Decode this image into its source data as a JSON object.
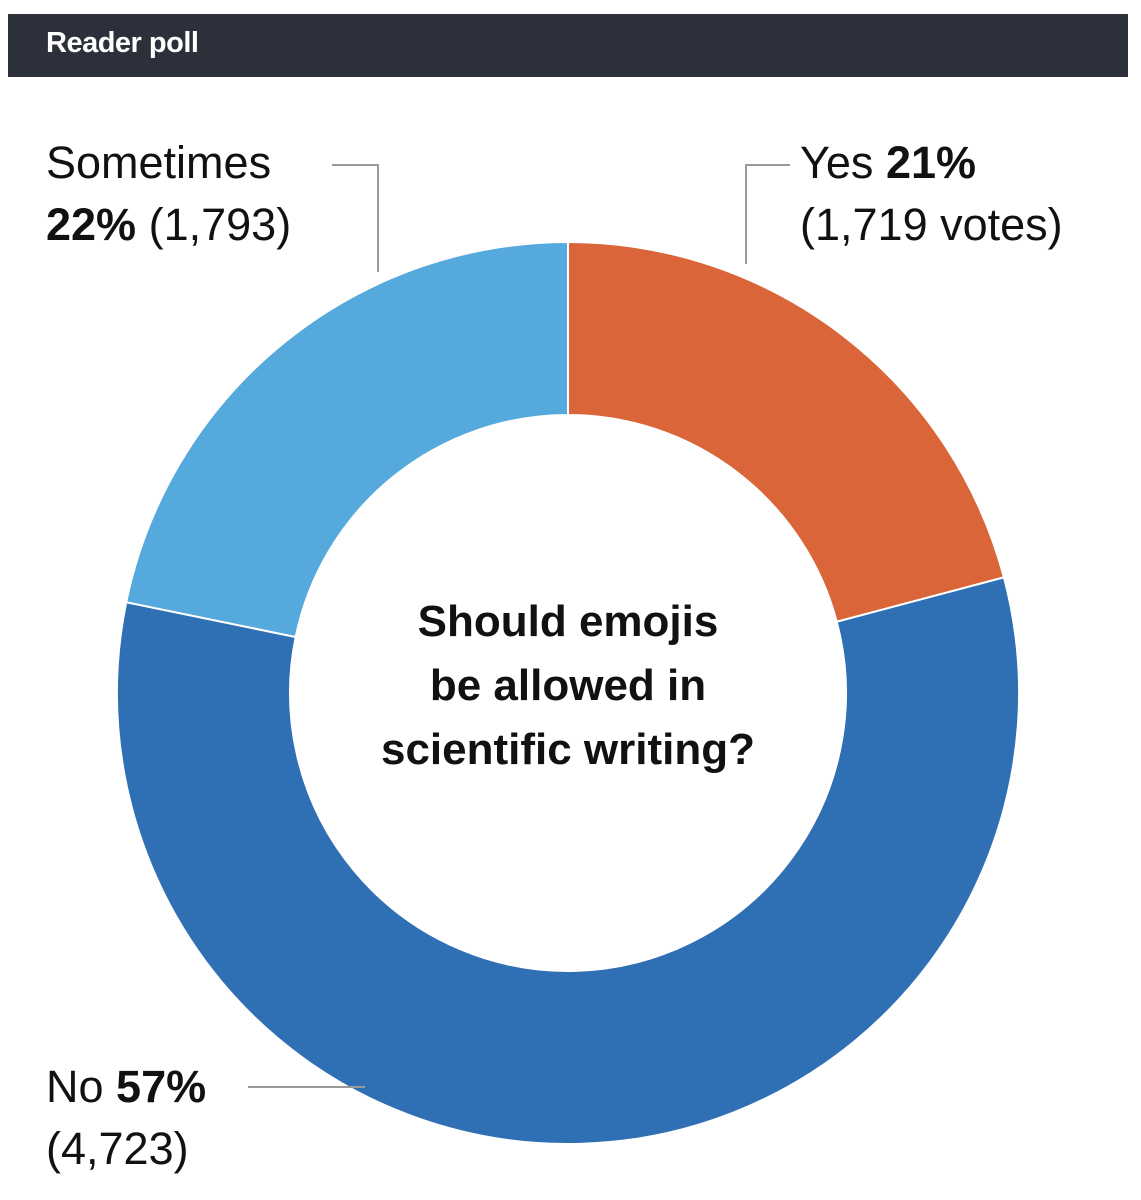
{
  "header": {
    "title": "Reader poll"
  },
  "colors": {
    "header_bg": "#2b303b",
    "yes": "#d96538",
    "no": "#2f6fb3",
    "sometimes": "#56a9dc",
    "leader": "#9a9a9a"
  },
  "chart_data": {
    "type": "pie",
    "donut": true,
    "title": "",
    "center_text": [
      "Should emojis",
      "be allowed in",
      "scientific writing?"
    ],
    "slices": [
      {
        "name": "Yes",
        "percent": 21,
        "percent_label": "21%",
        "votes": 1719,
        "votes_label": "(1,719 votes)",
        "color": "#d96538"
      },
      {
        "name": "No",
        "percent": 57,
        "percent_label": "57%",
        "votes": 4723,
        "votes_label": "(4,723)",
        "color": "#2f6fb3"
      },
      {
        "name": "Sometimes",
        "percent": 22,
        "percent_label": "22%",
        "votes": 1793,
        "votes_label": "(1,793)",
        "color": "#56a9dc"
      }
    ]
  }
}
